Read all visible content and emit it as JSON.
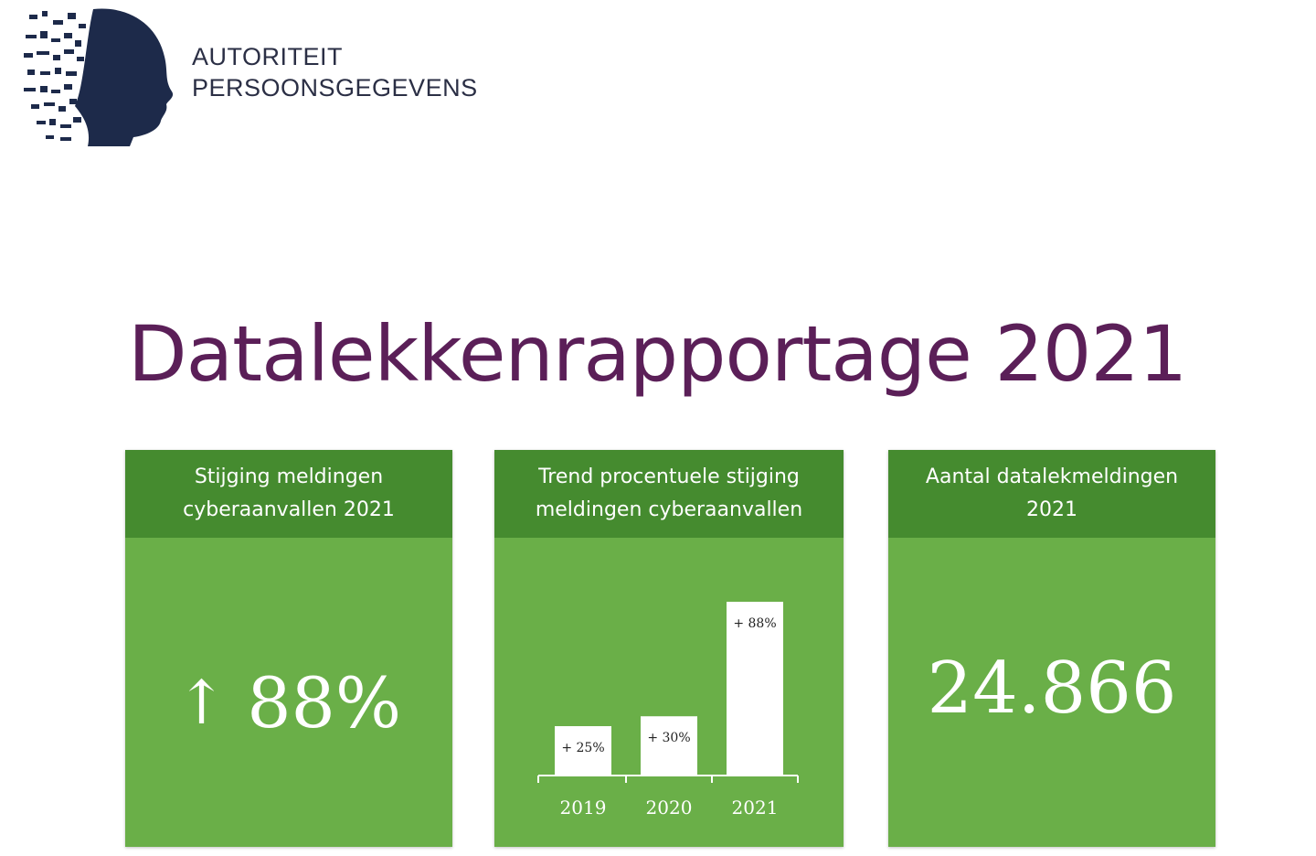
{
  "org": {
    "name_line1": "AUTORITEIT",
    "name_line2": "PERSOONSGEGEVENS"
  },
  "report_title": "Datalekkenrapportage 2021",
  "panels": {
    "increase": {
      "header_line1": "Stijging meldingen",
      "header_line2": "cyberaanvallen 2021",
      "arrow_icon": "up-arrow-icon",
      "value": "88%"
    },
    "trend": {
      "header_line1": "Trend procentuele stijging",
      "header_line2": "meldingen cyberaanvallen"
    },
    "total": {
      "header_line1": "Aantal datalekmeldingen",
      "header_line2": "2021",
      "value": "24.866"
    }
  },
  "colors": {
    "panel_body": "#6aaf48",
    "panel_header": "#458b2f",
    "title": "#5b1f58",
    "logo": "#1d2a4a"
  },
  "chart_data": {
    "type": "bar",
    "title": "Trend procentuele stijging meldingen cyberaanvallen",
    "categories": [
      "2019",
      "2020",
      "2021"
    ],
    "values": [
      25,
      30,
      88
    ],
    "value_labels": [
      "+ 25%",
      "+ 30%",
      "+ 88%"
    ],
    "xlabel": "",
    "ylabel": "",
    "ylim": [
      0,
      100
    ],
    "grid": false,
    "legend": "none"
  }
}
